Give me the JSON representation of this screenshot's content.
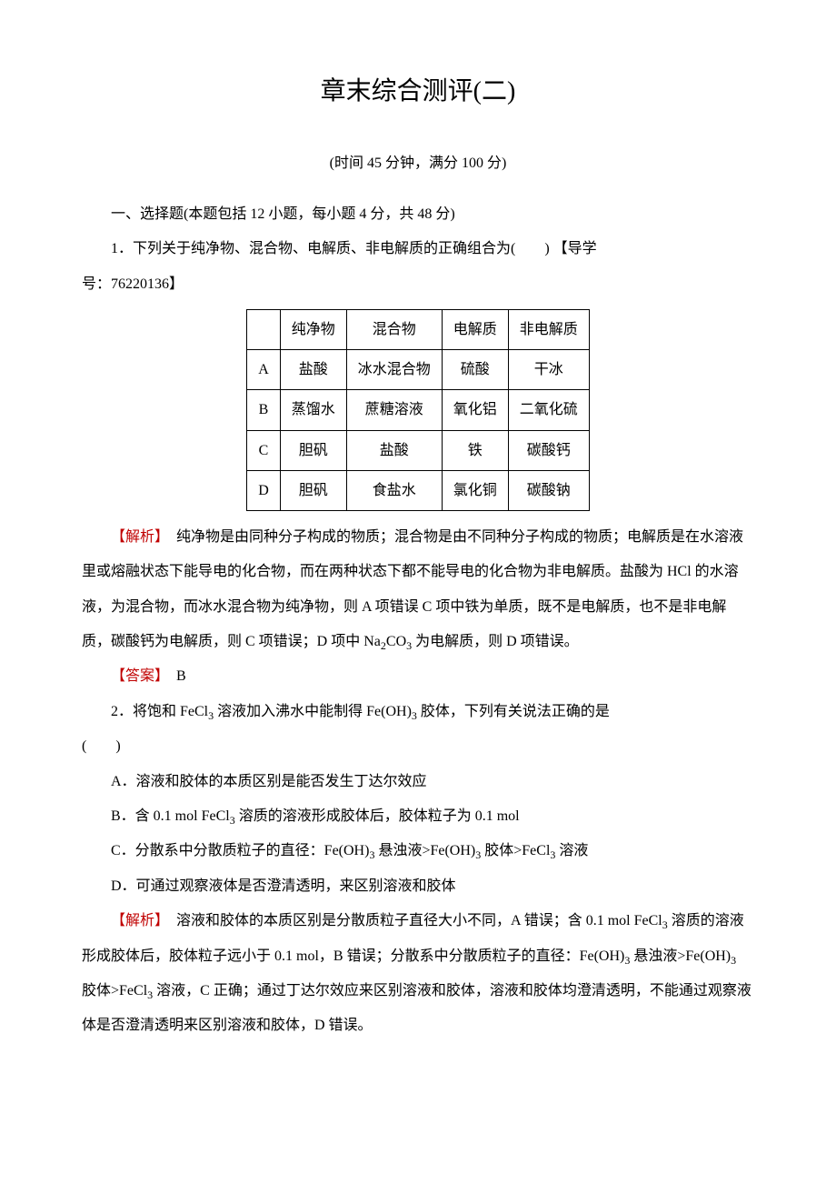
{
  "title": "章末综合测评(二)",
  "subtitle": "(时间 45 分钟，满分 100 分)",
  "section_heading": "一、选择题(本题包括 12 小题，每小题 4 分，共 48 分)",
  "q1": {
    "prefix": "1．下列关于纯净物、混合物、电解质、非电解质的正确组合为(　　)",
    "guide_label": "【导学",
    "guide_num": "号：76220136】",
    "table": {
      "header": [
        "",
        "纯净物",
        "混合物",
        "电解质",
        "非电解质"
      ],
      "rows": [
        [
          "A",
          "盐酸",
          "冰水混合物",
          "硫酸",
          "干冰"
        ],
        [
          "B",
          "蒸馏水",
          "蔗糖溶液",
          "氧化铝",
          "二氧化硫"
        ],
        [
          "C",
          "胆矾",
          "盐酸",
          "铁",
          "碳酸钙"
        ],
        [
          "D",
          "胆矾",
          "食盐水",
          "氯化铜",
          "碳酸钠"
        ]
      ]
    },
    "analysis_label": "【解析】",
    "analysis_body_1": "　纯净物是由同种分子构成的物质；混合物是由不同种分子构成的物质；电解质是在水溶液里或熔融状态下能导电的化合物，而在两种状态下都不能导电的化合物为非电解质。盐酸为 HCl 的水溶液，为混合物，而冰水混合物为纯净物，则 A 项错误  C 项中铁为单质，既不是电解质，也不是非电解质，碳酸钙为电解质，则 C 项错误；D 项中 Na",
    "analysis_body_2": "CO",
    "analysis_body_3": " 为电解质，则 D 项错误。",
    "sub2": "2",
    "sub3": "3",
    "answer_label": "【答案】",
    "answer": "　B"
  },
  "q2": {
    "stem_1": "2．将饱和 FeCl",
    "stem_2": " 溶液加入沸水中能制得 Fe(OH)",
    "stem_3": " 胶体，下列有关说法正确的是",
    "paren_line": "(　　)",
    "optA": "A．溶液和胶体的本质区别是能否发生丁达尔效应",
    "optB_1": "B．含 0.1 mol FeCl",
    "optB_2": " 溶质的溶液形成胶体后，胶体粒子为 0.1 mol",
    "optC_1": "C．分散系中分散质粒子的直径：Fe(OH)",
    "optC_2": " 悬浊液>Fe(OH)",
    "optC_3": " 胶体>FeCl",
    "optC_4": " 溶液",
    "optD": "D．可通过观察液体是否澄清透明，来区别溶液和胶体",
    "analysis_label": "【解析】",
    "ana_1": "　溶液和胶体的本质区别是分散质粒子直径大小不同，A 错误；含 0.1 mol FeCl",
    "ana_2": " 溶质的溶液形成胶体后，胶体粒子远小于 0.1 mol，B 错误；分散系中分散质粒子的直径：Fe(OH)",
    "ana_3": " 悬浊液>Fe(OH)",
    "ana_4": " 胶体>FeCl",
    "ana_5": " 溶液，C 正确；通过丁达尔效应来区别溶液和胶体，溶液和胶体均澄清透明，不能通过观察液体是否澄清透明来区别溶液和胶体，D 错误。",
    "sub3": "3"
  }
}
